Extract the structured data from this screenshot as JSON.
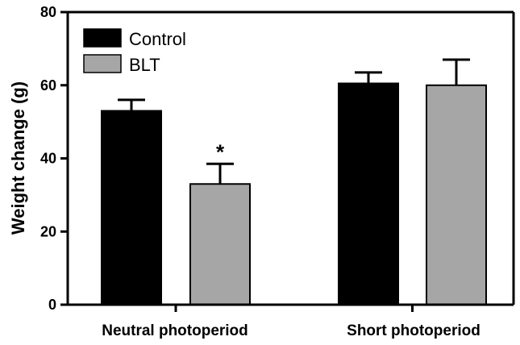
{
  "chart_data": {
    "type": "bar",
    "title": "",
    "xlabel": "",
    "ylabel": "Weight change (g)",
    "ylim": [
      0,
      80
    ],
    "yticks": [
      0,
      20,
      40,
      60,
      80
    ],
    "categories": [
      "Neutral photoperiod",
      "Short photoperiod"
    ],
    "series": [
      {
        "name": "Control",
        "color": "#000000",
        "values": [
          53,
          60.5
        ],
        "errors": [
          3,
          3
        ]
      },
      {
        "name": "BLT",
        "color": "#a6a6a6",
        "values": [
          33,
          60
        ],
        "errors": [
          5.5,
          7
        ]
      }
    ],
    "annotations": [
      {
        "text": "*",
        "category": 0,
        "series": 1
      }
    ],
    "legend": "top-left",
    "grid": false
  }
}
